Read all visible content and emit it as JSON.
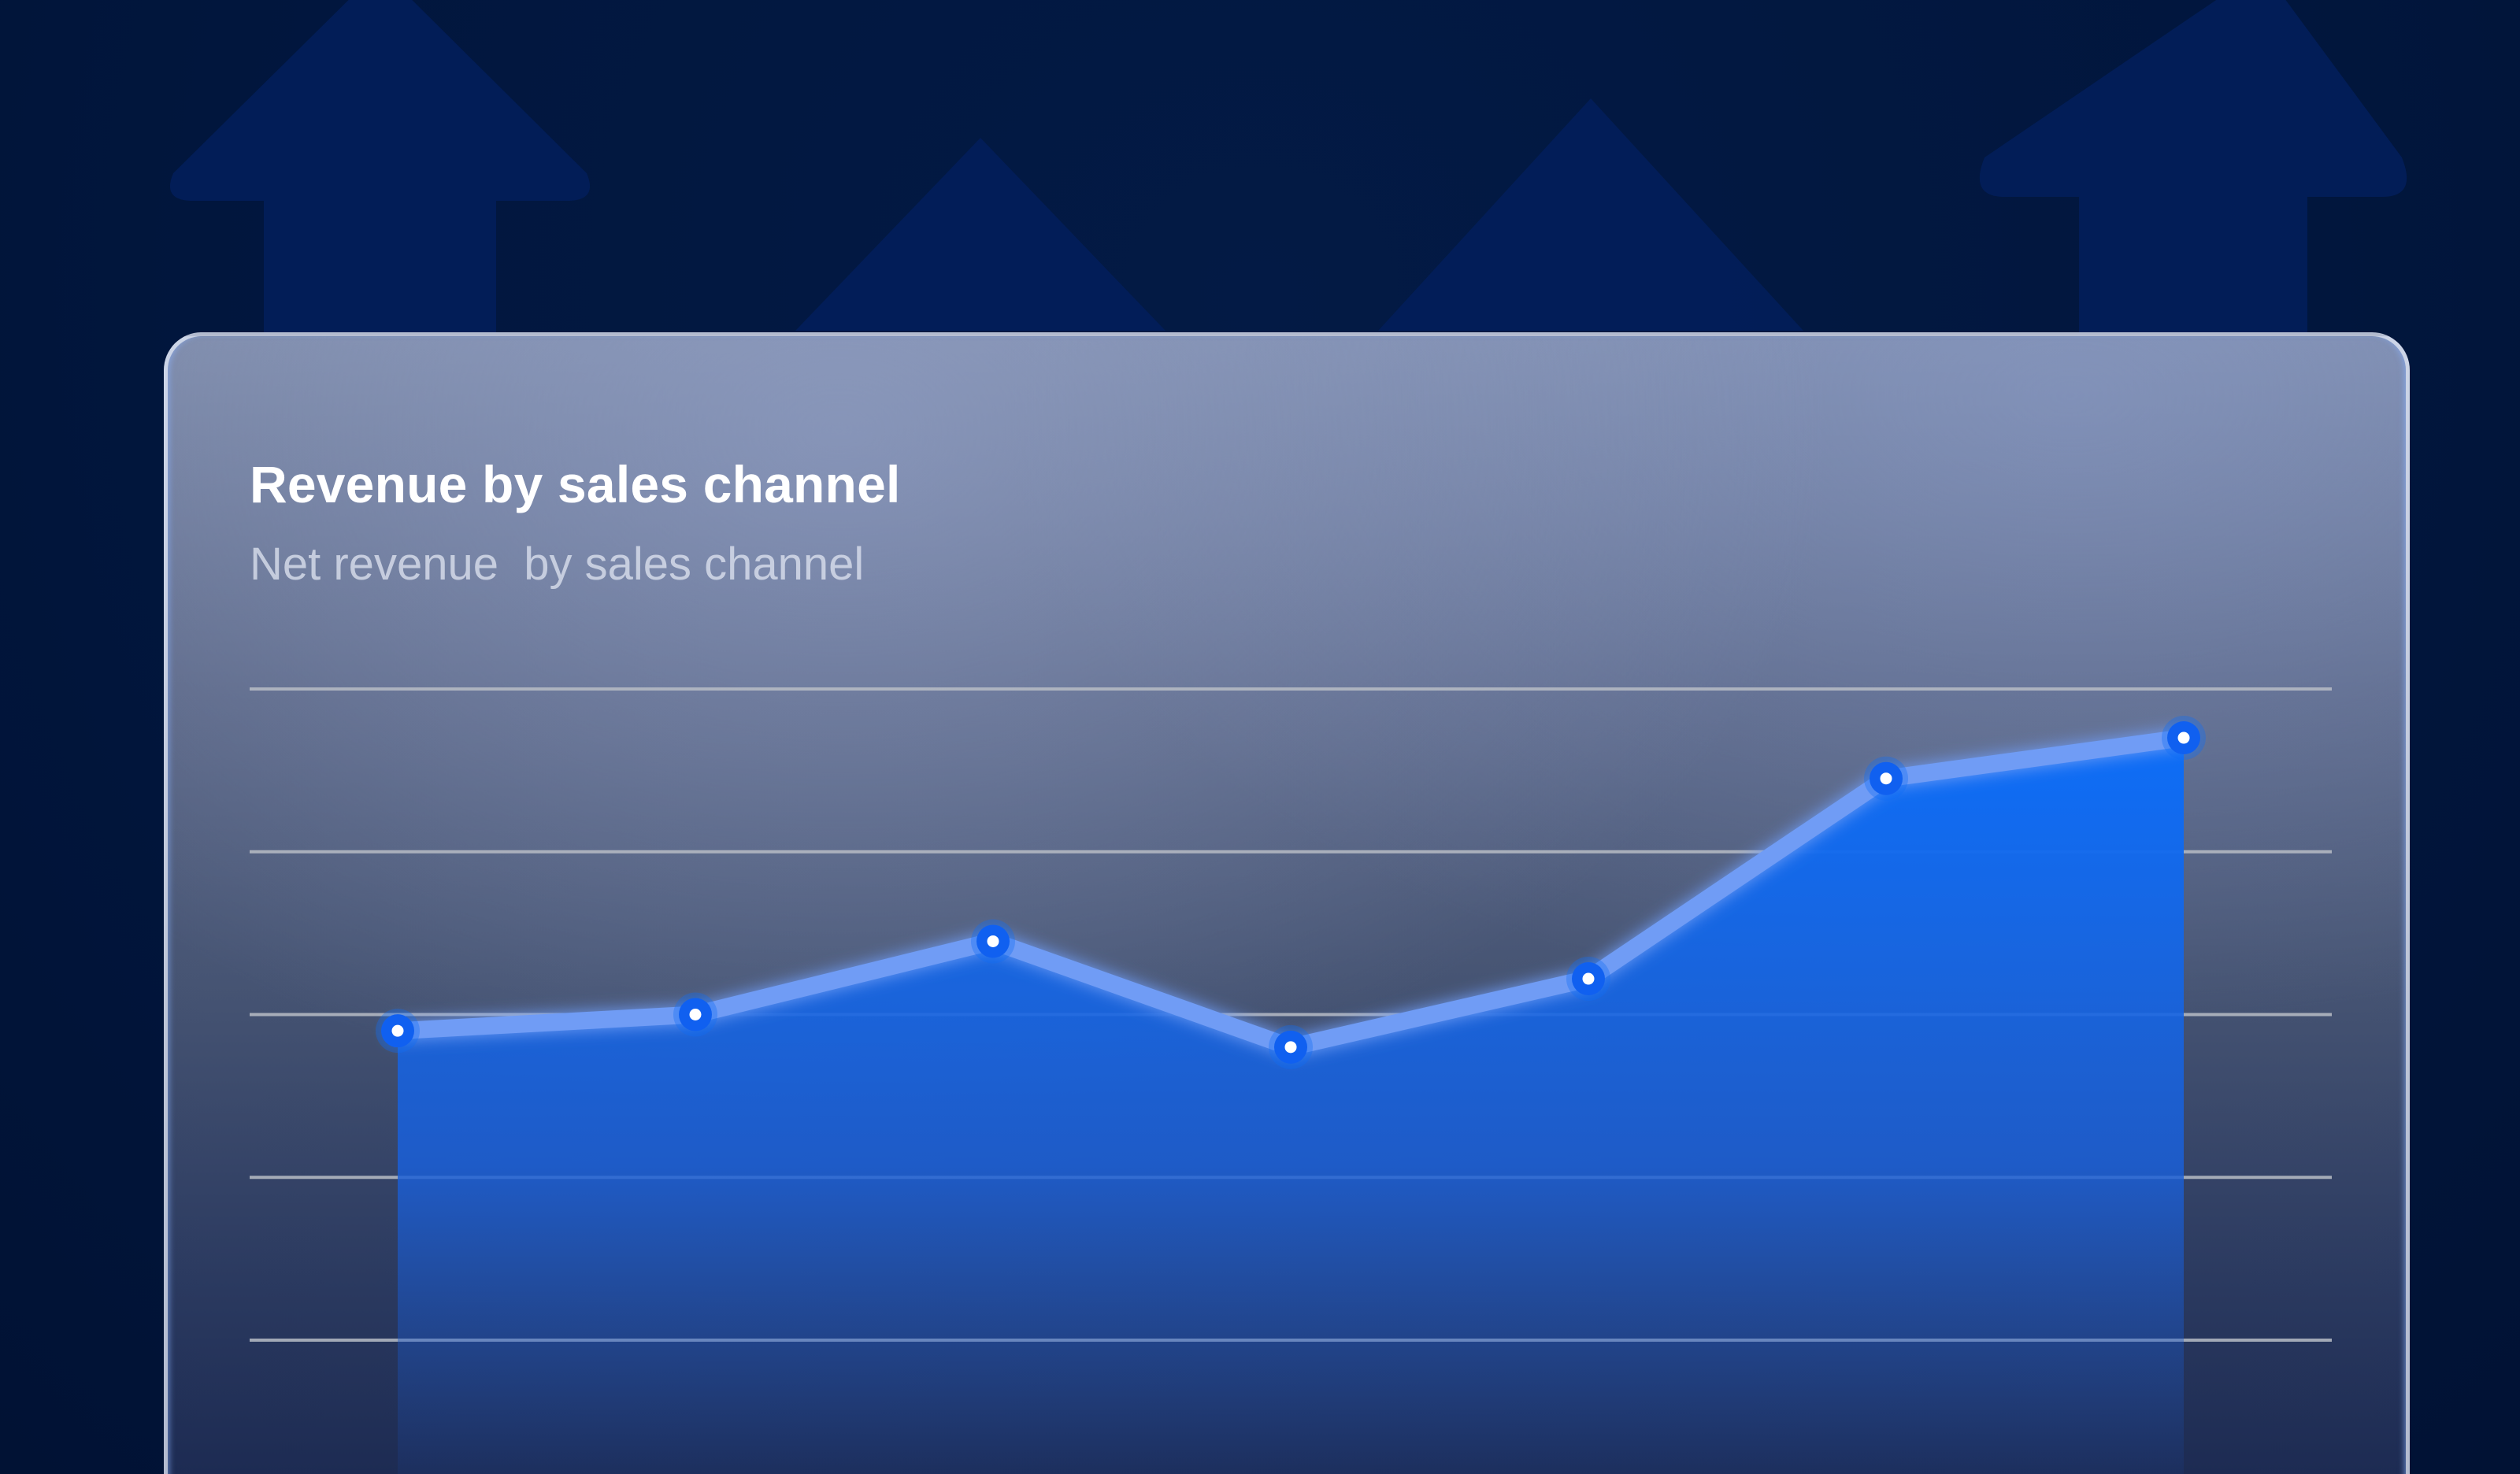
{
  "card": {
    "title": "Revenue by sales channel",
    "subtitle": "Net revenue  by sales channel"
  },
  "colors": {
    "background": "#01163d",
    "background_arrows": "#021f5c",
    "line": "#6f9cf5",
    "area_top": "#0d6df7",
    "point_fill": "#1060f0",
    "point_center": "#ffffff",
    "gridline": "#b9bdc6"
  },
  "chart_data": {
    "type": "area",
    "title": "Revenue by sales channel",
    "subtitle": "Net revenue  by sales channel",
    "xlabel": "",
    "ylabel": "",
    "x": [
      1,
      2,
      3,
      4,
      5,
      6,
      7
    ],
    "ylim": [
      0,
      4
    ],
    "gridlines_y": [
      0,
      1,
      2,
      3,
      4
    ],
    "grid": true,
    "legend": "none",
    "series": [
      {
        "values": [
          1.9,
          2.0,
          2.45,
          1.8,
          2.22,
          3.45,
          3.7
        ]
      }
    ]
  }
}
